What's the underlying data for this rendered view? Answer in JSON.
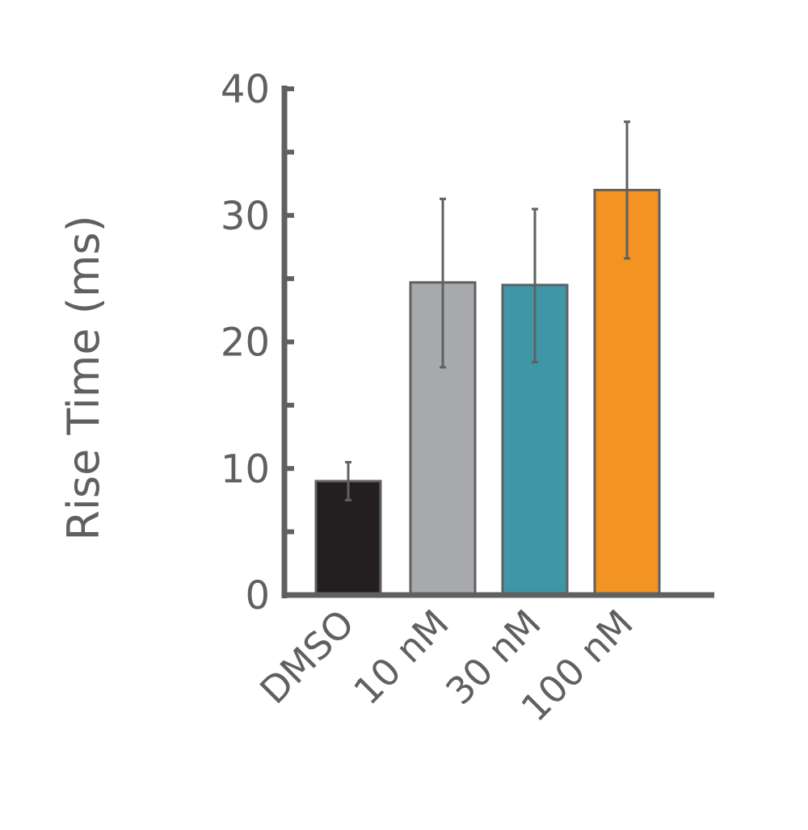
{
  "chart_data": {
    "type": "bar",
    "categories": [
      "DMSO",
      "10 nM",
      "30 nM",
      "100 nM"
    ],
    "values": [
      9,
      24.7,
      24.5,
      32
    ],
    "error_low": [
      7.5,
      18,
      18.4,
      26.6
    ],
    "error_high": [
      10.5,
      31.3,
      30.5,
      37.4
    ],
    "bar_colors": [
      "#231f20",
      "#a7a9ac",
      "#3f96a6",
      "#f39322"
    ],
    "ylabel": "Rise Time (ms)",
    "xlabel": "",
    "title": "",
    "ylim": [
      0,
      40
    ],
    "yticks": [
      0,
      10,
      20,
      30,
      40
    ],
    "minor_ticks": [
      5,
      15,
      25,
      35
    ],
    "grid": false,
    "axis_color": "#5f6062",
    "outline_color": "#5f6062"
  }
}
